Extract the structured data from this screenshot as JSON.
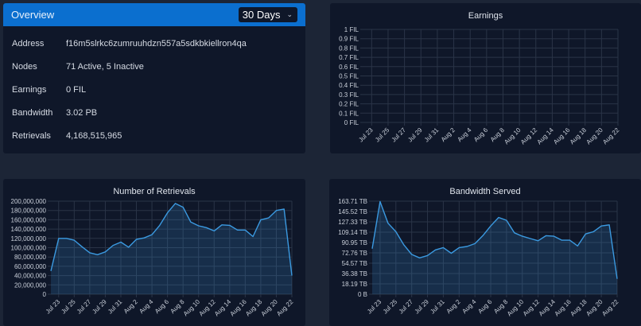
{
  "overview": {
    "title": "Overview",
    "range_select": {
      "value": "30 Days",
      "icon": "chevron-down-icon"
    },
    "rows": [
      {
        "label": "Address",
        "value": "f16m5slrkc6zumruuhdzn557a5sdkbkiellron4qa"
      },
      {
        "label": "Nodes",
        "value": "71 Active, 5 Inactive"
      },
      {
        "label": "Earnings",
        "value": "0 FIL"
      },
      {
        "label": "Bandwidth",
        "value": "3.02 PB"
      },
      {
        "label": "Retrievals",
        "value": "4,168,515,965"
      }
    ]
  },
  "colors": {
    "background": "#1c2536",
    "card": "#0f1729",
    "header": "#0b6fcf",
    "line": "#3b9ae1"
  },
  "chart_data": [
    {
      "id": "earn",
      "type": "line",
      "title": "Earnings",
      "x_tick_labels": [
        "Jul 23",
        "Jul 25",
        "Jul 27",
        "Jul 29",
        "Jul 31",
        "Aug 2",
        "Aug 4",
        "Aug 6",
        "Aug 8",
        "Aug 10",
        "Aug 12",
        "Aug 14",
        "Aug 16",
        "Aug 18",
        "Aug 20",
        "Aug 22"
      ],
      "y_tick_labels": [
        "0 FIL",
        "0.1 FIL",
        "0.2 FIL",
        "0.3 FIL",
        "0.4 FIL",
        "0.5 FIL",
        "0.6 FIL",
        "0.7 FIL",
        "0.8 FIL",
        "0.9 FIL",
        "1 FIL"
      ],
      "ylim": [
        0,
        1
      ],
      "values": [],
      "grid": true
    },
    {
      "id": "retr",
      "type": "area",
      "title": "Number of Retrievals",
      "x": [
        "Jul 22",
        "Jul 23",
        "Jul 24",
        "Jul 25",
        "Jul 26",
        "Jul 27",
        "Jul 28",
        "Jul 29",
        "Jul 30",
        "Jul 31",
        "Aug 1",
        "Aug 2",
        "Aug 3",
        "Aug 4",
        "Aug 5",
        "Aug 6",
        "Aug 7",
        "Aug 8",
        "Aug 9",
        "Aug 10",
        "Aug 11",
        "Aug 12",
        "Aug 13",
        "Aug 14",
        "Aug 15",
        "Aug 16",
        "Aug 17",
        "Aug 18",
        "Aug 19",
        "Aug 20",
        "Aug 21",
        "Aug 22"
      ],
      "x_tick_labels": [
        "Jul 23",
        "Jul 25",
        "Jul 27",
        "Jul 29",
        "Jul 31",
        "Aug 2",
        "Aug 4",
        "Aug 6",
        "Aug 8",
        "Aug 10",
        "Aug 12",
        "Aug 14",
        "Aug 16",
        "Aug 18",
        "Aug 20",
        "Aug 22"
      ],
      "y_tick_labels": [
        "0",
        "20,000,000",
        "40,000,000",
        "60,000,000",
        "80,000,000",
        "100,000,000",
        "120,000,000",
        "140,000,000",
        "160,000,000",
        "180,000,000",
        "200,000,000"
      ],
      "ylim": [
        0,
        200000000
      ],
      "values": [
        50000000,
        120000000,
        120000000,
        116000000,
        102000000,
        89000000,
        85000000,
        91000000,
        105000000,
        112000000,
        101000000,
        118000000,
        121000000,
        128000000,
        148000000,
        175000000,
        195000000,
        187000000,
        155000000,
        147000000,
        143000000,
        136000000,
        149000000,
        148000000,
        138000000,
        138000000,
        124000000,
        160000000,
        164000000,
        180000000,
        183000000,
        40000000
      ],
      "grid": true
    },
    {
      "id": "band",
      "type": "area",
      "title": "Bandwidth Served",
      "x": [
        "Jul 22",
        "Jul 23",
        "Jul 24",
        "Jul 25",
        "Jul 26",
        "Jul 27",
        "Jul 28",
        "Jul 29",
        "Jul 30",
        "Jul 31",
        "Aug 1",
        "Aug 2",
        "Aug 3",
        "Aug 4",
        "Aug 5",
        "Aug 6",
        "Aug 7",
        "Aug 8",
        "Aug 9",
        "Aug 10",
        "Aug 11",
        "Aug 12",
        "Aug 13",
        "Aug 14",
        "Aug 15",
        "Aug 16",
        "Aug 17",
        "Aug 18",
        "Aug 19",
        "Aug 20",
        "Aug 21",
        "Aug 22"
      ],
      "x_tick_labels": [
        "Jul 23",
        "Jul 25",
        "Jul 27",
        "Jul 29",
        "Jul 31",
        "Aug 2",
        "Aug 4",
        "Aug 6",
        "Aug 8",
        "Aug 10",
        "Aug 12",
        "Aug 14",
        "Aug 16",
        "Aug 18",
        "Aug 20",
        "Aug 22"
      ],
      "y_tick_labels": [
        "0 B",
        "18.19 TB",
        "36.38 TB",
        "54.57 TB",
        "72.76 TB",
        "90.95 TB",
        "109.14 TB",
        "127.33 TB",
        "145.52 TB",
        "163.71 TB"
      ],
      "ylim": [
        0,
        163.71
      ],
      "y_unit": "TB",
      "values": [
        80,
        163,
        125,
        110,
        87,
        70,
        64,
        68,
        78,
        82,
        72,
        82,
        84,
        89,
        103,
        120,
        135,
        130,
        108,
        102,
        98,
        94,
        103,
        102,
        95,
        95,
        85,
        106,
        110,
        120,
        122,
        27
      ],
      "grid": true
    }
  ]
}
